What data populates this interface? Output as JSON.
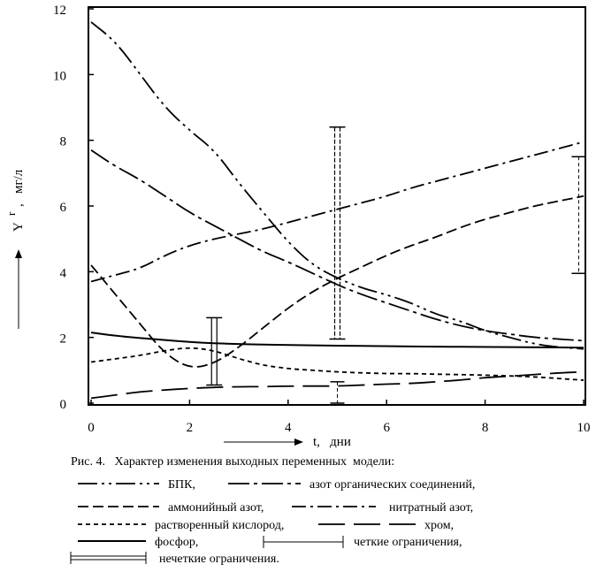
{
  "chart_data": {
    "type": "line",
    "xlabel": "t,   дни",
    "ylabel": "Y",
    "ylabel_superscript": "r",
    "ylabel_unit": ",   мг/л",
    "xlim": [
      0,
      10
    ],
    "ylim": [
      0,
      12
    ],
    "x_ticks": [
      0,
      2,
      4,
      6,
      8,
      10
    ],
    "y_ticks": [
      0,
      2,
      4,
      6,
      8,
      10,
      12
    ],
    "series": [
      {
        "name": "БПК",
        "style": "dash-dot-dot",
        "points": [
          [
            0,
            11.6
          ],
          [
            0.5,
            11.0
          ],
          [
            1.0,
            10.0
          ],
          [
            1.5,
            9.0
          ],
          [
            2.0,
            8.3
          ],
          [
            2.5,
            7.7
          ],
          [
            3.0,
            6.7
          ],
          [
            3.5,
            5.8
          ],
          [
            4.0,
            4.9
          ],
          [
            4.5,
            4.2
          ],
          [
            5.0,
            3.8
          ],
          [
            5.5,
            3.5
          ],
          [
            6.0,
            3.3
          ],
          [
            6.5,
            3.05
          ],
          [
            7.0,
            2.7
          ],
          [
            7.5,
            2.5
          ],
          [
            8.0,
            2.2
          ],
          [
            8.5,
            2.0
          ],
          [
            9.0,
            1.8
          ],
          [
            9.5,
            1.7
          ],
          [
            10.0,
            1.65
          ]
        ]
      },
      {
        "name": "азот органических соединений",
        "style": "long-dash-dot",
        "points": [
          [
            0,
            7.7
          ],
          [
            0.5,
            7.2
          ],
          [
            1.0,
            6.8
          ],
          [
            1.5,
            6.3
          ],
          [
            2.0,
            5.8
          ],
          [
            2.5,
            5.4
          ],
          [
            3.0,
            5.0
          ],
          [
            3.5,
            4.6
          ],
          [
            4.0,
            4.3
          ],
          [
            4.5,
            3.95
          ],
          [
            5.0,
            3.6
          ],
          [
            5.5,
            3.3
          ],
          [
            6.0,
            3.05
          ],
          [
            6.5,
            2.8
          ],
          [
            7.0,
            2.55
          ],
          [
            7.5,
            2.35
          ],
          [
            8.0,
            2.2
          ],
          [
            8.5,
            2.1
          ],
          [
            9.0,
            2.0
          ],
          [
            9.5,
            1.95
          ],
          [
            10.0,
            1.9
          ]
        ]
      },
      {
        "name": "аммонийный азот",
        "style": "medium-dash",
        "points": [
          [
            0,
            4.2
          ],
          [
            0.5,
            3.3
          ],
          [
            1.0,
            2.4
          ],
          [
            1.5,
            1.5
          ],
          [
            2.0,
            1.05
          ],
          [
            2.5,
            1.2
          ],
          [
            3.0,
            1.7
          ],
          [
            3.5,
            2.3
          ],
          [
            4.0,
            2.9
          ],
          [
            4.5,
            3.4
          ],
          [
            5.0,
            3.8
          ],
          [
            5.5,
            4.15
          ],
          [
            6.0,
            4.5
          ],
          [
            6.5,
            4.8
          ],
          [
            7.0,
            5.05
          ],
          [
            7.5,
            5.35
          ],
          [
            8.0,
            5.6
          ],
          [
            8.5,
            5.8
          ],
          [
            9.0,
            6.0
          ],
          [
            9.5,
            6.15
          ],
          [
            10.0,
            6.3
          ]
        ]
      },
      {
        "name": "нитратный азот",
        "style": "dash-dot",
        "points": [
          [
            0,
            3.7
          ],
          [
            0.5,
            3.9
          ],
          [
            1.0,
            4.1
          ],
          [
            1.5,
            4.5
          ],
          [
            2.0,
            4.8
          ],
          [
            2.5,
            5.0
          ],
          [
            3.0,
            5.15
          ],
          [
            3.5,
            5.3
          ],
          [
            4.0,
            5.5
          ],
          [
            4.5,
            5.7
          ],
          [
            5.0,
            5.9
          ],
          [
            5.5,
            6.1
          ],
          [
            6.0,
            6.3
          ],
          [
            6.5,
            6.55
          ],
          [
            7.0,
            6.75
          ],
          [
            7.5,
            6.95
          ],
          [
            8.0,
            7.15
          ],
          [
            8.5,
            7.35
          ],
          [
            9.0,
            7.55
          ],
          [
            9.5,
            7.75
          ],
          [
            10.0,
            7.95
          ]
        ]
      },
      {
        "name": "растворенный кислород",
        "style": "short-dash",
        "points": [
          [
            0,
            1.25
          ],
          [
            0.5,
            1.35
          ],
          [
            1.0,
            1.45
          ],
          [
            1.5,
            1.6
          ],
          [
            2.0,
            1.7
          ],
          [
            2.5,
            1.6
          ],
          [
            3.0,
            1.35
          ],
          [
            3.5,
            1.15
          ],
          [
            4.0,
            1.05
          ],
          [
            4.5,
            1.0
          ],
          [
            5.0,
            0.95
          ],
          [
            5.5,
            0.92
          ],
          [
            6.0,
            0.9
          ],
          [
            6.5,
            0.9
          ],
          [
            7.0,
            0.88
          ],
          [
            7.5,
            0.87
          ],
          [
            8.0,
            0.85
          ],
          [
            8.5,
            0.83
          ],
          [
            9.0,
            0.8
          ],
          [
            9.5,
            0.75
          ],
          [
            10.0,
            0.7
          ]
        ]
      },
      {
        "name": "хром",
        "style": "long-dash",
        "points": [
          [
            0,
            0.15
          ],
          [
            0.5,
            0.25
          ],
          [
            1.0,
            0.35
          ],
          [
            1.5,
            0.4
          ],
          [
            2.0,
            0.45
          ],
          [
            2.5,
            0.48
          ],
          [
            3.0,
            0.5
          ],
          [
            3.5,
            0.5
          ],
          [
            4.0,
            0.52
          ],
          [
            4.5,
            0.52
          ],
          [
            5.0,
            0.52
          ],
          [
            5.5,
            0.55
          ],
          [
            6.0,
            0.58
          ],
          [
            6.5,
            0.6
          ],
          [
            7.0,
            0.65
          ],
          [
            7.5,
            0.7
          ],
          [
            8.0,
            0.78
          ],
          [
            8.5,
            0.82
          ],
          [
            9.0,
            0.87
          ],
          [
            9.5,
            0.92
          ],
          [
            10.0,
            0.95
          ]
        ]
      },
      {
        "name": "фосфор",
        "style": "solid",
        "points": [
          [
            0,
            2.15
          ],
          [
            0.5,
            2.05
          ],
          [
            1.0,
            1.98
          ],
          [
            1.5,
            1.92
          ],
          [
            2.0,
            1.86
          ],
          [
            2.5,
            1.82
          ],
          [
            3.0,
            1.8
          ],
          [
            3.5,
            1.78
          ],
          [
            4.0,
            1.77
          ],
          [
            5.0,
            1.75
          ],
          [
            6.0,
            1.73
          ],
          [
            7.0,
            1.72
          ],
          [
            8.0,
            1.71
          ],
          [
            9.0,
            1.7
          ],
          [
            10.0,
            1.69
          ]
        ]
      }
    ],
    "constraints": [
      {
        "kind": "crisp",
        "x": 5.0,
        "y_low": 0.0,
        "y_high": 0.65
      },
      {
        "kind": "crisp",
        "x": 9.9,
        "y_low": 3.95,
        "y_high": 7.5
      },
      {
        "kind": "fuzzy",
        "x": 2.5,
        "y_low": 0.55,
        "y_high": 2.6
      },
      {
        "kind": "fuzzy",
        "x": 5.0,
        "y_low": 1.95,
        "y_high": 8.4
      }
    ],
    "caption": "Рис. 4.   Характер изменения выходных переменных  модели:",
    "legend": [
      {
        "label": "БПК,",
        "style": "dash-dot-dot"
      },
      {
        "label": "азот органических соединений,",
        "style": "long-dash-dot"
      },
      {
        "label": "аммонийный азот,",
        "style": "medium-dash"
      },
      {
        "label": "нитратный азот,",
        "style": "dash-dot"
      },
      {
        "label": "растворенный кислород,",
        "style": "short-dash"
      },
      {
        "label": "хром,",
        "style": "long-dash"
      },
      {
        "label": "фосфор,",
        "style": "solid"
      },
      {
        "label": "четкие ограничения,",
        "style": "crisp-bracket"
      },
      {
        "label": "нечеткие ограничения.",
        "style": "fuzzy-bracket"
      }
    ],
    "grid": false,
    "legend_placement": "bottom"
  }
}
